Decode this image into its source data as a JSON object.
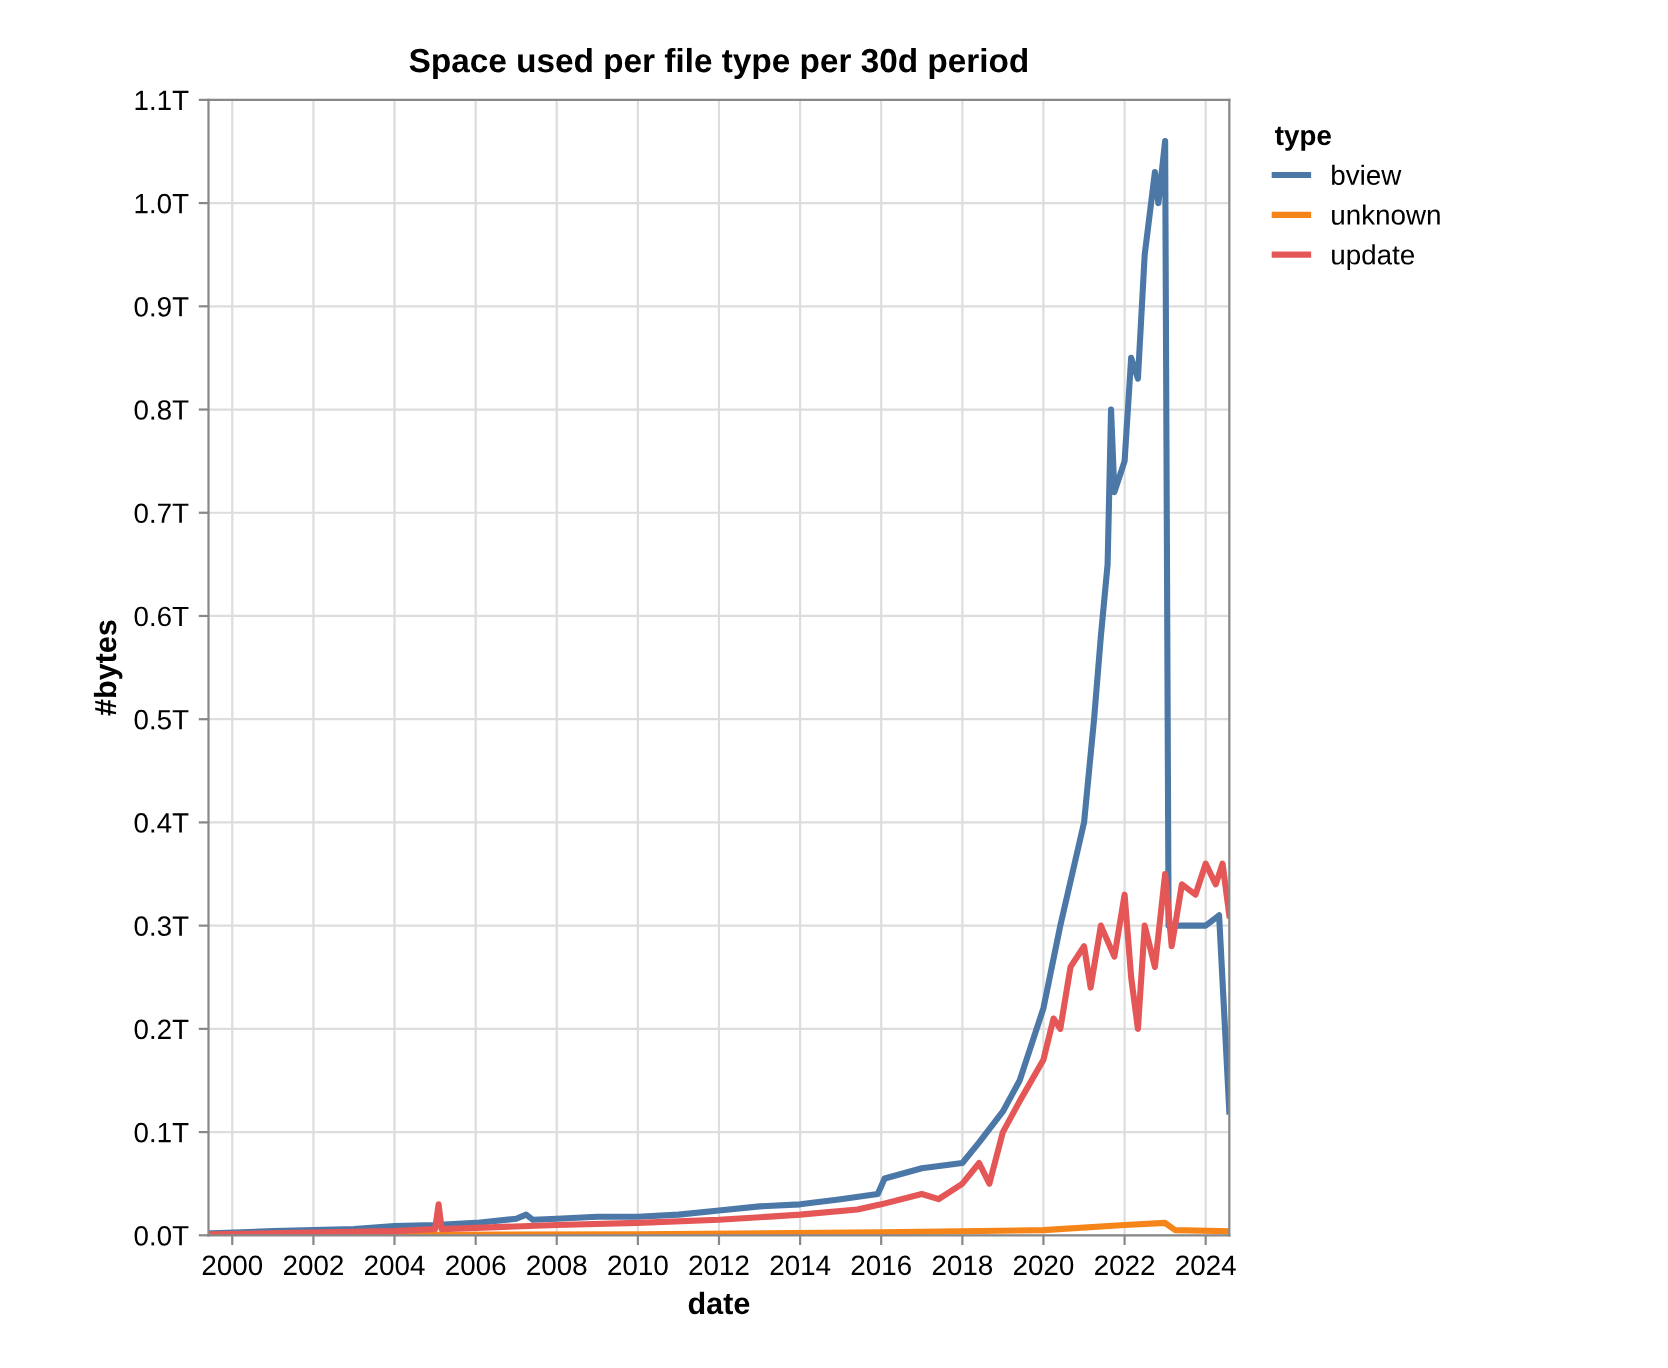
{
  "chart_data": {
    "type": "line",
    "title": "Space used per file type per 30d period",
    "xlabel": "date",
    "ylabel": "#bytes",
    "legend_title": "type",
    "legend": "top right",
    "grid": true,
    "xlim": [
      "1999-06",
      "2024-08"
    ],
    "xticks": [
      {
        "value": "2000",
        "label": "2000"
      },
      {
        "value": "2002",
        "label": "2002"
      },
      {
        "value": "2004",
        "label": "2004"
      },
      {
        "value": "2006",
        "label": "2006"
      },
      {
        "value": "2008",
        "label": "2008"
      },
      {
        "value": "2010",
        "label": "2010"
      },
      {
        "value": "2012",
        "label": "2012"
      },
      {
        "value": "2014",
        "label": "2014"
      },
      {
        "value": "2016",
        "label": "2016"
      },
      {
        "value": "2018",
        "label": "2018"
      },
      {
        "value": "2020",
        "label": "2020"
      },
      {
        "value": "2022",
        "label": "2022"
      },
      {
        "value": "2024",
        "label": "2024"
      }
    ],
    "ylim": [
      0,
      1.1
    ],
    "yticks": [
      {
        "value": 0,
        "label": "0.0T"
      },
      {
        "value": 0.1,
        "label": "0.1T"
      },
      {
        "value": 0.2,
        "label": "0.2T"
      },
      {
        "value": 0.3,
        "label": "0.3T"
      },
      {
        "value": 0.4,
        "label": "0.4T"
      },
      {
        "value": 0.5,
        "label": "0.5T"
      },
      {
        "value": 0.6,
        "label": "0.6T"
      },
      {
        "value": 0.7,
        "label": "0.7T"
      },
      {
        "value": 0.8,
        "label": "0.8T"
      },
      {
        "value": 0.9,
        "label": "0.9T"
      },
      {
        "value": 1.0,
        "label": "1.0T"
      },
      {
        "value": 1.1,
        "label": "1.1T"
      }
    ],
    "series": [
      {
        "name": "bview",
        "color": "#4c78a8",
        "x": [
          "1999-07",
          "2001-01",
          "2003-01",
          "2004-01",
          "2005-01",
          "2006-01",
          "2007-01",
          "2007-04",
          "2007-06",
          "2008-01",
          "2009-01",
          "2010-01",
          "2011-01",
          "2012-01",
          "2013-01",
          "2014-01",
          "2015-01",
          "2015-12",
          "2016-02",
          "2017-01",
          "2018-01",
          "2018-06",
          "2019-01",
          "2019-06",
          "2020-01",
          "2020-06",
          "2021-01",
          "2021-04",
          "2021-06",
          "2021-08",
          "2021-09",
          "2021-10",
          "2022-01",
          "2022-03",
          "2022-05",
          "2022-07",
          "2022-10",
          "2022-11",
          "2023-01",
          "2023-02",
          "2023-06",
          "2024-01",
          "2024-05",
          "2024-08"
        ],
        "values": [
          0.002,
          0.004,
          0.006,
          0.009,
          0.01,
          0.012,
          0.016,
          0.02,
          0.015,
          0.016,
          0.018,
          0.018,
          0.02,
          0.024,
          0.028,
          0.03,
          0.035,
          0.04,
          0.055,
          0.065,
          0.07,
          0.09,
          0.12,
          0.15,
          0.22,
          0.3,
          0.4,
          0.5,
          0.58,
          0.65,
          0.8,
          0.72,
          0.75,
          0.85,
          0.83,
          0.95,
          1.03,
          1.0,
          1.06,
          0.3,
          0.3,
          0.3,
          0.31,
          0.12
        ]
      },
      {
        "name": "unknown",
        "color": "#f58518",
        "x": [
          "1999-07",
          "2010-01",
          "2016-01",
          "2020-01",
          "2022-01",
          "2023-01",
          "2023-04",
          "2024-08"
        ],
        "values": [
          0.0,
          0.001,
          0.003,
          0.005,
          0.01,
          0.012,
          0.005,
          0.004
        ]
      },
      {
        "name": "update",
        "color": "#e45756",
        "x": [
          "1999-07",
          "2004-01",
          "2005-01",
          "2005-02",
          "2005-03",
          "2008-01",
          "2010-01",
          "2012-01",
          "2014-01",
          "2015-06",
          "2016-01",
          "2017-01",
          "2017-06",
          "2018-01",
          "2018-06",
          "2018-09",
          "2019-01",
          "2019-06",
          "2020-01",
          "2020-04",
          "2020-06",
          "2020-09",
          "2021-01",
          "2021-03",
          "2021-06",
          "2021-10",
          "2022-01",
          "2022-03",
          "2022-05",
          "2022-07",
          "2022-10",
          "2023-01",
          "2023-03",
          "2023-06",
          "2023-10",
          "2024-01",
          "2024-04",
          "2024-06",
          "2024-08"
        ],
        "values": [
          0.001,
          0.004,
          0.006,
          0.03,
          0.006,
          0.01,
          0.012,
          0.015,
          0.02,
          0.025,
          0.03,
          0.04,
          0.035,
          0.05,
          0.07,
          0.05,
          0.1,
          0.13,
          0.17,
          0.21,
          0.2,
          0.26,
          0.28,
          0.24,
          0.3,
          0.27,
          0.33,
          0.25,
          0.2,
          0.3,
          0.26,
          0.35,
          0.28,
          0.34,
          0.33,
          0.36,
          0.34,
          0.36,
          0.31
        ]
      }
    ]
  }
}
